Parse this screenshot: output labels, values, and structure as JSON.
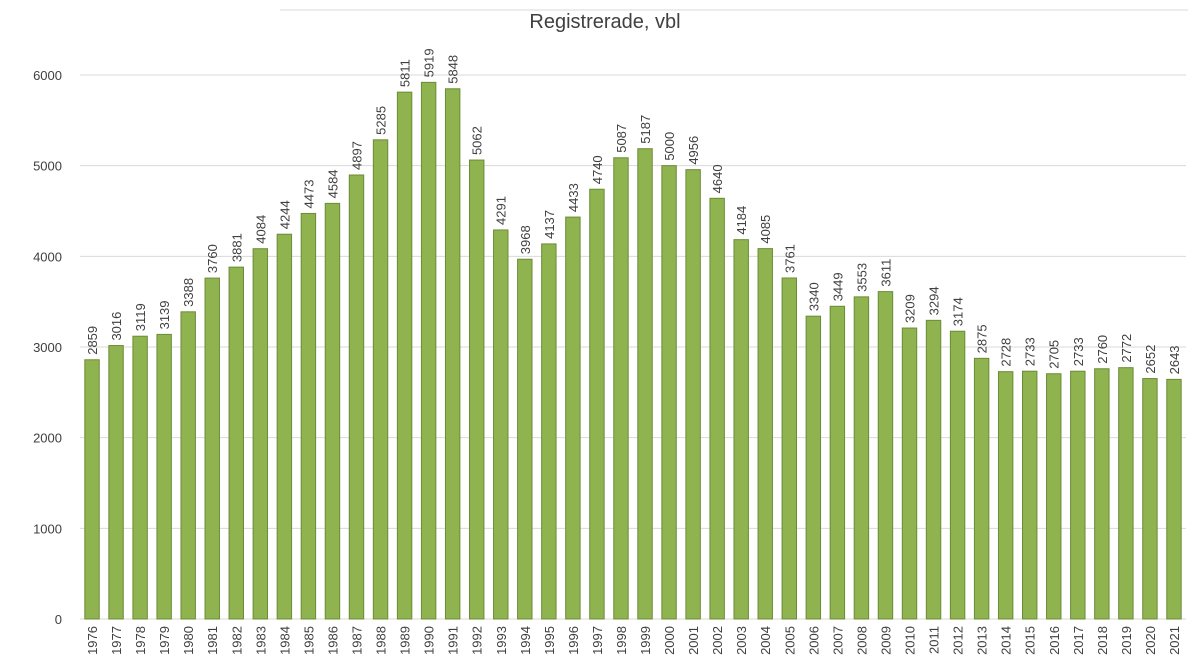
{
  "chart_data": {
    "type": "bar",
    "title": "Registrerade, vbl",
    "categories": [
      "1976",
      "1977",
      "1978",
      "1979",
      "1980",
      "1981",
      "1982",
      "1983",
      "1984",
      "1985",
      "1986",
      "1987",
      "1988",
      "1989",
      "1990",
      "1991",
      "1992",
      "1993",
      "1994",
      "1995",
      "1996",
      "1997",
      "1998",
      "1999",
      "2000",
      "2001",
      "2002",
      "2003",
      "2004",
      "2005",
      "2006",
      "2007",
      "2008",
      "2009",
      "2010",
      "2011",
      "2012",
      "2013",
      "2014",
      "2015",
      "2016",
      "2017",
      "2018",
      "2019",
      "2020",
      "2021"
    ],
    "values": [
      2859,
      3016,
      3119,
      3139,
      3388,
      3760,
      3881,
      4084,
      4244,
      4473,
      4584,
      4897,
      5285,
      5811,
      5919,
      5848,
      5062,
      4291,
      3968,
      4137,
      4433,
      4740,
      5087,
      5187,
      5000,
      4956,
      4640,
      4184,
      4085,
      3761,
      3340,
      3449,
      3553,
      3611,
      3209,
      3294,
      3174,
      2875,
      2728,
      2733,
      2705,
      2733,
      2760,
      2772,
      2652,
      2643
    ],
    "color": "#8fb34f",
    "ylim": [
      0,
      6000
    ],
    "yticks": [
      0,
      1000,
      2000,
      3000,
      4000,
      5000,
      6000
    ],
    "grid": true
  }
}
